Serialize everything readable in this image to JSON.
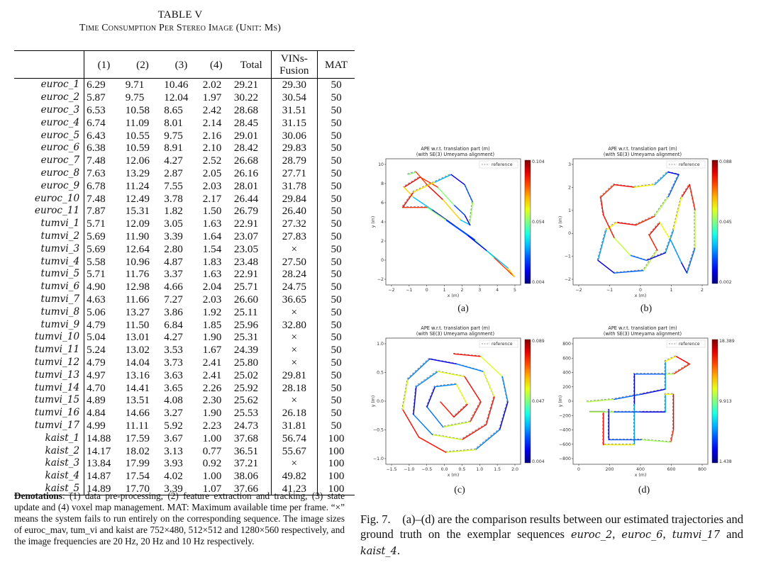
{
  "table": {
    "caption_line1": "TABLE V",
    "caption_line2": "Time Consumption Per Stereo Image (Unit: Ms)",
    "headers": [
      "",
      "(1)",
      "(2)",
      "(3)",
      "(4)",
      "Total",
      "VINs-Fusion",
      "MAT"
    ],
    "rows": [
      [
        "euroc_1",
        "6.29",
        "9.71",
        "10.46",
        "2.02",
        "29.21",
        "29.30",
        "50"
      ],
      [
        "euroc_2",
        "5.87",
        "9.75",
        "12.04",
        "1.97",
        "30.22",
        "30.54",
        "50"
      ],
      [
        "euroc_3",
        "6.53",
        "10.58",
        "8.65",
        "2.42",
        "28.68",
        "31.51",
        "50"
      ],
      [
        "euroc_4",
        "6.74",
        "11.09",
        "8.01",
        "2.14",
        "28.45",
        "31.15",
        "50"
      ],
      [
        "euroc_5",
        "6.43",
        "10.55",
        "9.75",
        "2.16",
        "29.01",
        "30.06",
        "50"
      ],
      [
        "euroc_6",
        "6.38",
        "10.59",
        "8.91",
        "2.10",
        "28.42",
        "29.83",
        "50"
      ],
      [
        "euroc_7",
        "7.48",
        "12.06",
        "4.27",
        "2.52",
        "26.68",
        "28.79",
        "50"
      ],
      [
        "euroc_8",
        "7.63",
        "13.29",
        "2.87",
        "2.05",
        "26.16",
        "27.71",
        "50"
      ],
      [
        "euroc_9",
        "6.78",
        "11.24",
        "7.55",
        "2.03",
        "28.01",
        "31.78",
        "50"
      ],
      [
        "euroc_10",
        "7.48",
        "12.49",
        "3.78",
        "2.17",
        "26.44",
        "29.84",
        "50"
      ],
      [
        "euroc_11",
        "7.87",
        "15.31",
        "1.82",
        "1.50",
        "26.79",
        "26.40",
        "50"
      ],
      [
        "tumvi_1",
        "5.71",
        "12.09",
        "3.05",
        "1.63",
        "22.91",
        "27.32",
        "50"
      ],
      [
        "tumvi_2",
        "5.69",
        "11.90",
        "3.39",
        "1.64",
        "23.07",
        "27.83",
        "50"
      ],
      [
        "tumvi_3",
        "5.69",
        "12.64",
        "2.80",
        "1.54",
        "23.05",
        "×",
        "50"
      ],
      [
        "tumvi_4",
        "5.58",
        "10.96",
        "4.87",
        "1.83",
        "23.48",
        "27.50",
        "50"
      ],
      [
        "tumvi_5",
        "5.71",
        "11.76",
        "3.37",
        "1.63",
        "22.91",
        "28.24",
        "50"
      ],
      [
        "tumvi_6",
        "4.90",
        "12.98",
        "4.66",
        "2.04",
        "25.71",
        "24.75",
        "50"
      ],
      [
        "tumvi_7",
        "4.63",
        "11.66",
        "7.27",
        "2.03",
        "26.60",
        "36.65",
        "50"
      ],
      [
        "tumvi_8",
        "5.06",
        "13.27",
        "3.86",
        "1.92",
        "25.11",
        "×",
        "50"
      ],
      [
        "tumvi_9",
        "4.79",
        "11.50",
        "6.84",
        "1.85",
        "25.96",
        "32.80",
        "50"
      ],
      [
        "tumvi_10",
        "5.04",
        "13.01",
        "4.27",
        "1.90",
        "25.31",
        "×",
        "50"
      ],
      [
        "tumvi_11",
        "5.24",
        "13.02",
        "3.53",
        "1.67",
        "24.39",
        "×",
        "50"
      ],
      [
        "tumvi_12",
        "4.79",
        "14.04",
        "3.73",
        "2.41",
        "25.80",
        "×",
        "50"
      ],
      [
        "tumvi_13",
        "4.97",
        "13.16",
        "3.63",
        "2.41",
        "25.02",
        "29.81",
        "50"
      ],
      [
        "tumvi_14",
        "4.70",
        "14.41",
        "3.65",
        "2.26",
        "25.92",
        "28.18",
        "50"
      ],
      [
        "tumvi_15",
        "4.89",
        "13.51",
        "4.08",
        "2.30",
        "25.62",
        "×",
        "50"
      ],
      [
        "tumvi_16",
        "4.84",
        "14.66",
        "3.27",
        "1.90",
        "25.53",
        "26.18",
        "50"
      ],
      [
        "tumvi_17",
        "4.99",
        "11.11",
        "5.92",
        "2.23",
        "24.73",
        "31.81",
        "50"
      ],
      [
        "kaist_1",
        "14.88",
        "17.59",
        "3.67",
        "1.00",
        "37.68",
        "56.74",
        "100"
      ],
      [
        "kaist_2",
        "14.17",
        "18.02",
        "3.13",
        "0.77",
        "36.51",
        "55.67",
        "100"
      ],
      [
        "kaist_3",
        "13.84",
        "17.99",
        "3.93",
        "0.92",
        "37.21",
        "×",
        "100"
      ],
      [
        "kaist_4",
        "14.87",
        "17.54",
        "4.02",
        "1.00",
        "38.06",
        "49.82",
        "100"
      ],
      [
        "kaist_5",
        "14.89",
        "17.70",
        "3.39",
        "1.07",
        "37.66",
        "41.23",
        "100"
      ]
    ],
    "denotation_label": "Denotations",
    "denotation_text": ": (1) data pre-processing, (2) feature extraction and tracking, (3) state update and (4) voxel map management. MAT: Maximum available time per frame. “×” means the system fails to run entirely on the corresponding sequence. The image sizes of euroc_mav, tum_vi and kaist are 752×480, 512×512 and 1280×560 respectively, and the image frequencies are 20 Hz, 20 Hz and 10 Hz respectively."
  },
  "figure": {
    "caption_prefix": "Fig. 7.",
    "caption_text": "(a)–(d) are the comparison results between our estimated trajectories and ground truth on the exemplar sequences",
    "caption_seqs": [
      "euroc_2",
      "euroc_6",
      "tumvi_17",
      "kaist_4"
    ],
    "panels": [
      {
        "label": "(a)",
        "title1": "APE w.r.t. translation part (m)",
        "title2": "(with SE(3) Umeyama alignment)",
        "legend": "reference",
        "xlabel": "x (m)",
        "ylabel": "y (m)",
        "xticks": [
          "−2",
          "−1",
          "0",
          "1",
          "2",
          "3",
          "4",
          "5"
        ],
        "yticks": [
          "10",
          "8",
          "6",
          "4",
          "2",
          "0",
          "−2"
        ],
        "cbar_max": "0.104",
        "cbar_mid": "0.054",
        "cbar_min": "0.004"
      },
      {
        "label": "(b)",
        "title1": "APE w.r.t. translation part (m)",
        "title2": "(with SE(3) Umeyama alignment)",
        "legend": "reference",
        "xlabel": "x (m)",
        "ylabel": "y (m)",
        "xticks": [
          "−2",
          "−1",
          "0",
          "1",
          "2"
        ],
        "yticks": [
          "3",
          "2",
          "1",
          "0",
          "−1",
          "−2"
        ],
        "cbar_max": "0.088",
        "cbar_mid": "0.045",
        "cbar_min": "0.002"
      },
      {
        "label": "(c)",
        "title1": "APE w.r.t. translation part (m)",
        "title2": "(with SE(3) Umeyama alignment)",
        "legend": "reference",
        "xlabel": "x (m)",
        "ylabel": "y (m)",
        "xticks": [
          "−1.5",
          "−1.0",
          "−0.5",
          "0.0",
          "0.5",
          "1.0",
          "1.5",
          "2.0"
        ],
        "yticks": [
          "1.0",
          "0.5",
          "0.0",
          "−0.5",
          "−1.0"
        ],
        "cbar_max": "0.089",
        "cbar_mid": "0.047",
        "cbar_min": "0.004"
      },
      {
        "label": "(d)",
        "title1": "APE w.r.t. translation part (m)",
        "title2": "(with SE(3) Umeyama alignment)",
        "legend": "reference",
        "xlabel": "x (m)",
        "ylabel": "y (m)",
        "xticks": [
          "0",
          "200",
          "400",
          "600",
          "800"
        ],
        "yticks": [
          "800",
          "600",
          "400",
          "200",
          "0",
          "−200",
          "−400",
          "−600",
          "−800"
        ],
        "cbar_max": "18.389",
        "cbar_mid": "9.913",
        "cbar_min": "1.438"
      }
    ]
  }
}
